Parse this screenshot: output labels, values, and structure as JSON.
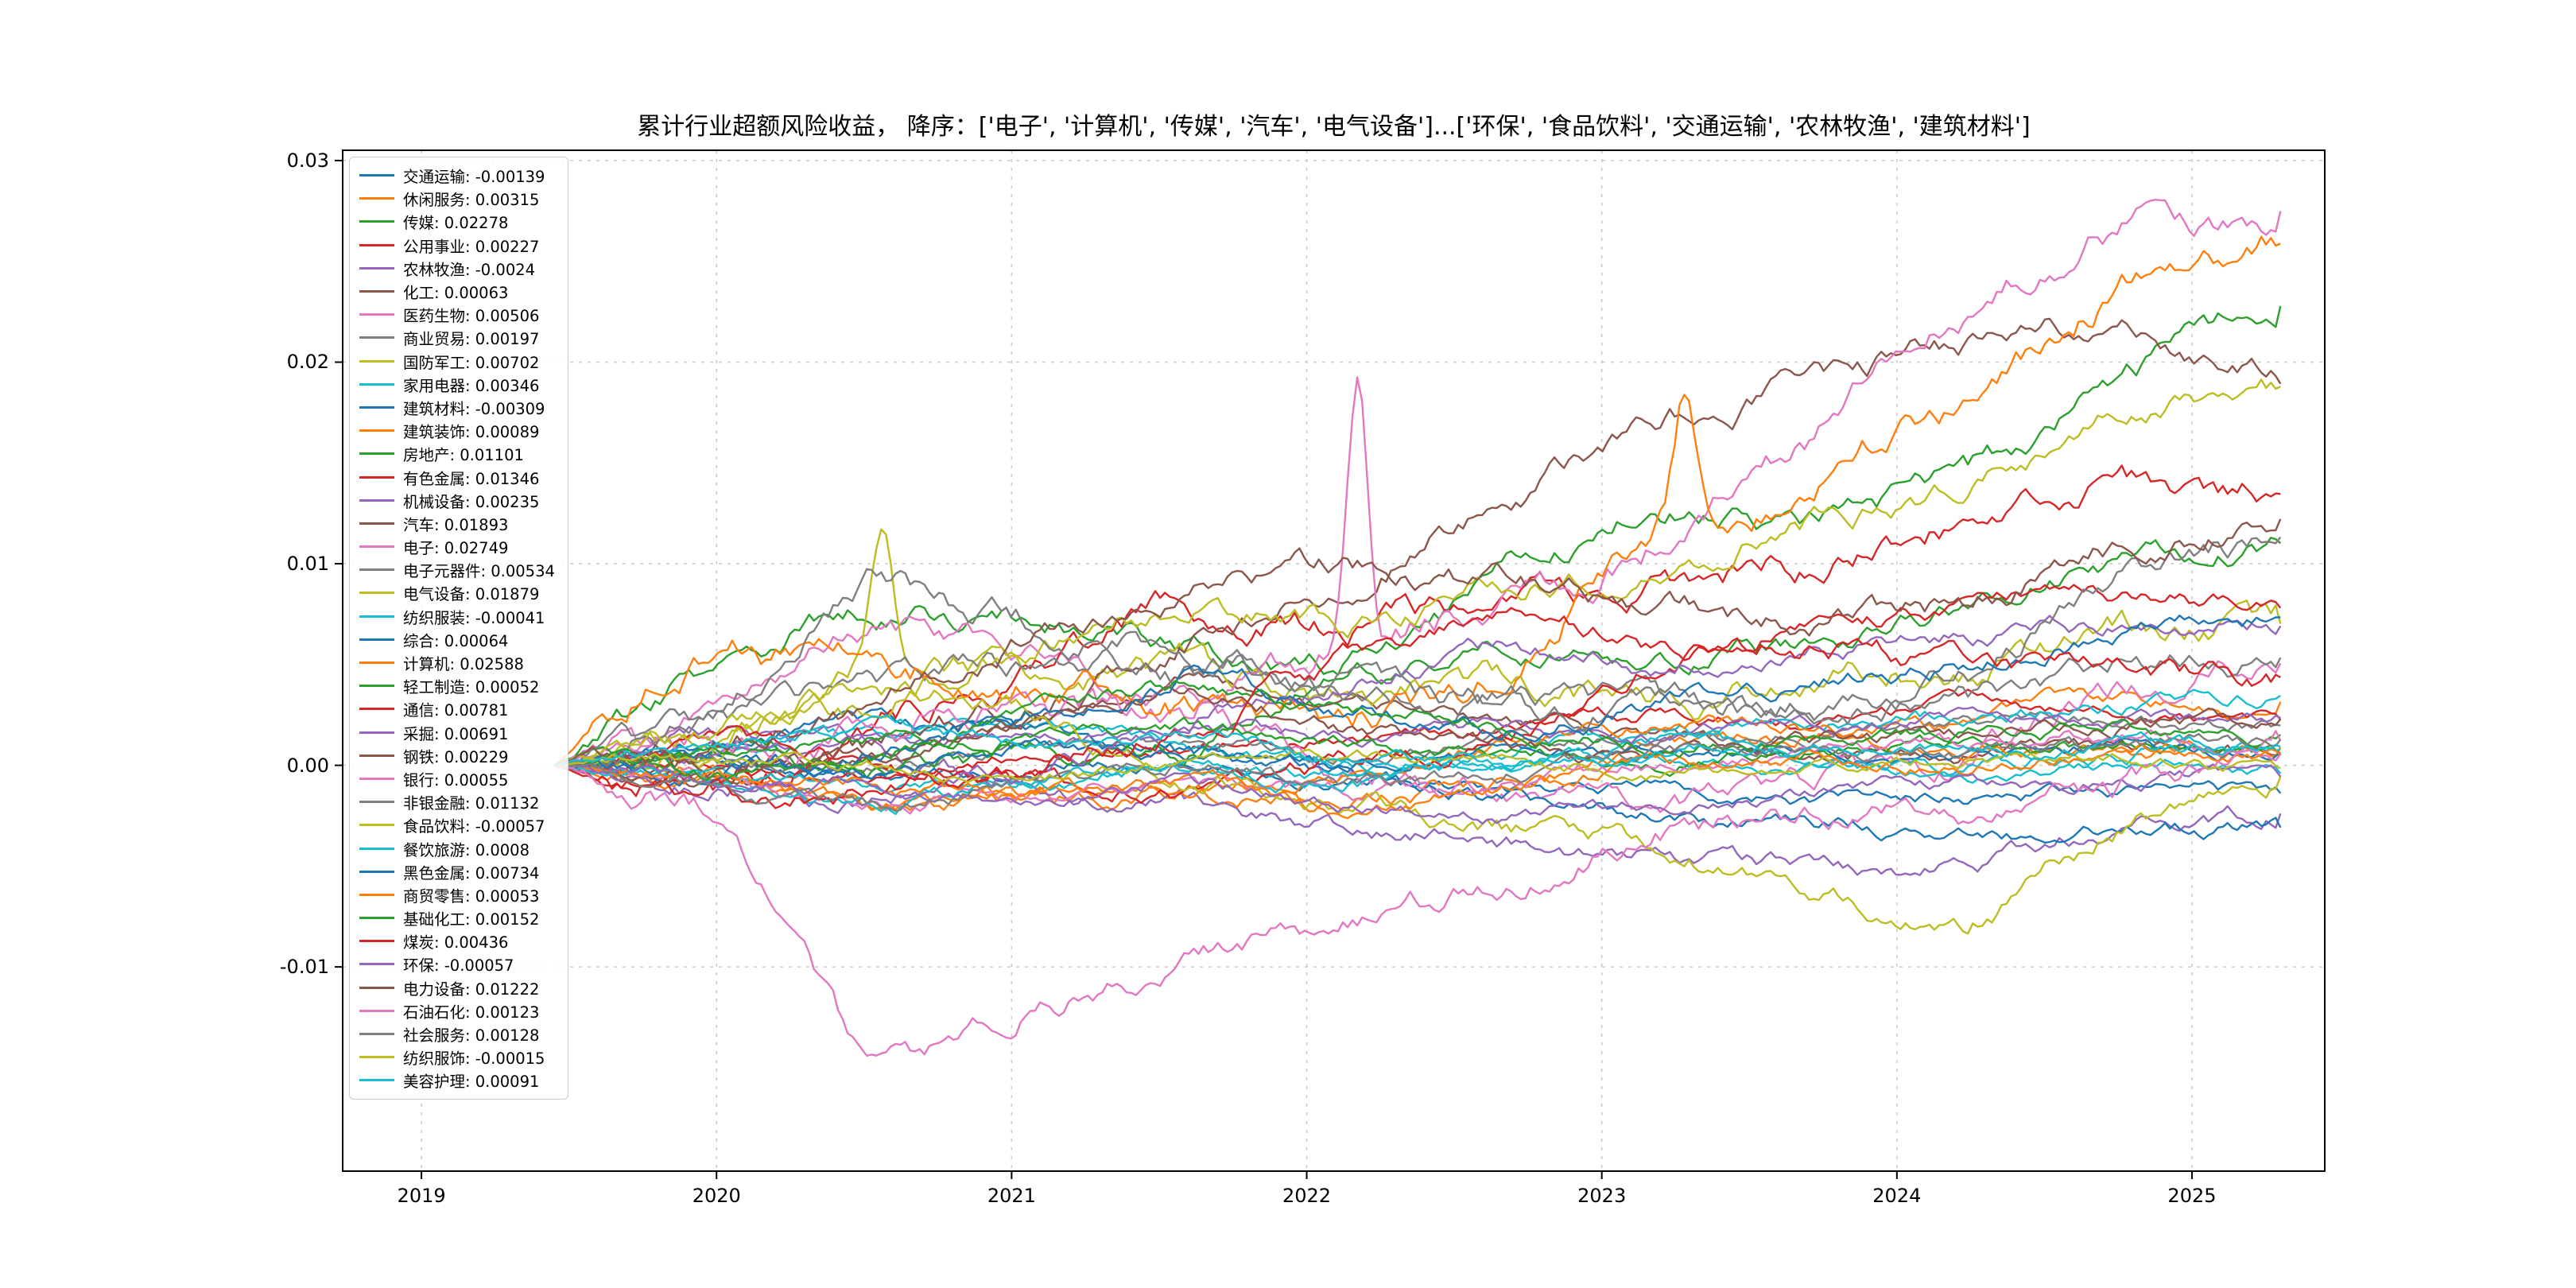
{
  "title": "累计行业超额风险收益， 降序：['电子', '计算机', '传媒', '汽车', '电气设备']...['环保', '食品饮料', '交通运输', '农林牧渔', '建筑材料']",
  "axes": {
    "y_ticks": [
      "0.03",
      "0.02",
      "0.01",
      "0.00",
      "-0.01"
    ],
    "y_tick_values": [
      0.03,
      0.02,
      0.01,
      0.0,
      -0.01
    ],
    "x_ticks": [
      "2019",
      "2020",
      "2021",
      "2022",
      "2023",
      "2024",
      "2025"
    ],
    "x_tick_values": [
      2019,
      2020,
      2021,
      2022,
      2023,
      2024,
      2025
    ],
    "xlim": [
      2018.733,
      2025.45
    ],
    "ylim": [
      -0.02013,
      0.03051
    ],
    "grid": true,
    "grid_style": "dashed"
  },
  "chart_data": {
    "type": "line",
    "title": "累计行业超额风险收益， 降序：['电子', '计算机', '传媒', '汽车', '电气设备']...['环保', '食品饮料', '交通运输', '农林牧渔', '建筑材料']",
    "xlabel": "",
    "ylabel": "",
    "legend_position": "upper-left",
    "x_start": 2019.45,
    "x_end": 2025.3,
    "anchor_unit": 0.001,
    "note": "anchors are cumulative excess return in units of 0.001, evenly spaced in time from x_start to x_end; final is the exact end value shown in the legend",
    "series": [
      {
        "name": "交通运输",
        "value_label": "-0.00139",
        "final": -0.00139,
        "color": "#1f77b4",
        "vol": 0.45,
        "anchors": [
          0,
          0.4,
          -0.8,
          -0.4,
          0.2,
          -0.8,
          -1.4,
          -1.0,
          -1.8,
          -1.6,
          -1.3,
          -1.39
        ]
      },
      {
        "name": "休闲服务",
        "value_label": "0.00315",
        "final": 0.00315,
        "color": "#ff7f0e",
        "vol": 0.6,
        "anchors": [
          0,
          -0.8,
          -2.6,
          -1.8,
          -1.2,
          -2.2,
          -1.2,
          0.8,
          1.8,
          2.4,
          3.0,
          3.15
        ]
      },
      {
        "name": "传媒",
        "value_label": "0.02278",
        "final": 0.02278,
        "color": "#2ca02c",
        "vol": 0.8,
        "anchors": [
          0,
          5,
          8,
          7,
          6,
          5,
          9,
          13,
          12,
          14,
          19,
          22.78
        ]
      },
      {
        "name": "公用事业",
        "value_label": "0.00227",
        "final": 0.00227,
        "color": "#d62728",
        "vol": 0.45,
        "anchors": [
          0,
          0,
          -0.5,
          0.5,
          1,
          1.5,
          2,
          2.6,
          2.1,
          3,
          2.5,
          2.27
        ]
      },
      {
        "name": "农林牧渔",
        "value_label": "-0.0024",
        "final": -0.0024,
        "color": "#9467bd",
        "vol": 0.6,
        "anchors": [
          0,
          2,
          1,
          -1,
          -2,
          -3,
          -4,
          -4.5,
          -5,
          -5,
          -3,
          -2.4
        ]
      },
      {
        "name": "化工",
        "value_label": "0.00063",
        "final": 0.00063,
        "color": "#8c564b",
        "vol": 0.5,
        "anchors": [
          0,
          -1,
          0,
          2,
          4,
          3,
          2.2,
          1.2,
          0.6,
          0.5,
          1,
          0.63
        ]
      },
      {
        "name": "医药生物",
        "value_label": "0.00506",
        "final": 0.00506,
        "color": "#e377c2",
        "vol": 0.8,
        "anchors": [
          0,
          3,
          7,
          6,
          3,
          0,
          -1,
          -2,
          -1,
          0,
          4,
          5.06
        ]
      },
      {
        "name": "商业贸易",
        "value_label": "0.00197",
        "final": 0.00197,
        "color": "#7f7f7f",
        "vol": 0.45,
        "anchors": [
          0,
          0.5,
          0,
          0.5,
          1,
          0.5,
          1.5,
          1,
          1.5,
          2,
          2.2,
          1.97
        ]
      },
      {
        "name": "国防军工",
        "value_label": "0.00702",
        "final": 0.00702,
        "color": "#bcbd22",
        "vol": 0.9,
        "anchors": [
          0,
          1,
          5,
          4.5,
          5,
          3,
          4,
          3,
          4,
          5,
          6.5,
          7.02
        ],
        "spikes": [
          [
            0.19,
            6
          ]
        ]
      },
      {
        "name": "家用电器",
        "value_label": "0.00346",
        "final": 0.00346,
        "color": "#17becf",
        "vol": 0.5,
        "anchors": [
          0,
          1,
          1.5,
          2,
          1,
          0,
          0.5,
          1.5,
          2,
          2.5,
          3,
          3.46
        ]
      },
      {
        "name": "建筑材料",
        "value_label": "-0.00309",
        "final": -0.00309,
        "color": "#1f77b4",
        "vol": 0.5,
        "anchors": [
          0,
          1,
          2,
          1.5,
          0.5,
          -0.5,
          -1.5,
          -2.5,
          -3,
          -3.5,
          -3.2,
          -3.09
        ]
      },
      {
        "name": "建筑装饰",
        "value_label": "0.00089",
        "final": 0.00089,
        "color": "#ff7f0e",
        "vol": 0.5,
        "anchors": [
          0,
          -1,
          -2,
          -1.5,
          -1,
          -0.5,
          1,
          2,
          1.5,
          1,
          0.8,
          0.89
        ]
      },
      {
        "name": "房地产",
        "value_label": "0.01101",
        "final": 0.01101,
        "color": "#2ca02c",
        "vol": 0.7,
        "anchors": [
          0,
          1,
          0,
          0.5,
          1,
          4,
          6,
          5,
          6,
          8,
          10,
          11.01
        ]
      },
      {
        "name": "有色金属",
        "value_label": "0.01346",
        "final": 0.01346,
        "color": "#d62728",
        "vol": 0.9,
        "anchors": [
          0,
          -1,
          1,
          5,
          8,
          7,
          8,
          9,
          10,
          12,
          14,
          13.46
        ]
      },
      {
        "name": "机械设备",
        "value_label": "0.00235",
        "final": 0.00235,
        "color": "#9467bd",
        "vol": 0.45,
        "anchors": [
          0,
          0.5,
          1,
          1.5,
          2,
          1.5,
          2,
          1.5,
          2,
          2.5,
          2.3,
          2.35
        ]
      },
      {
        "name": "汽车",
        "value_label": "0.01893",
        "final": 0.01893,
        "color": "#8c564b",
        "vol": 0.8,
        "anchors": [
          0,
          0,
          1,
          3,
          6,
          9,
          13,
          17,
          19,
          21,
          22,
          18.93
        ]
      },
      {
        "name": "电子",
        "value_label": "0.02749",
        "final": 0.02749,
        "color": "#e377c2",
        "vol": 1.0,
        "anchors": [
          0,
          1,
          2,
          3,
          2,
          6,
          8,
          11,
          16,
          23,
          27,
          27.49
        ],
        "spikes": [
          [
            0.465,
            14
          ]
        ]
      },
      {
        "name": "电子元器件",
        "value_label": "0.00534",
        "final": 0.00534,
        "color": "#7f7f7f",
        "vol": 0.8,
        "anchors": [
          0,
          2,
          4,
          5,
          6,
          4,
          3,
          2.5,
          2,
          3,
          5,
          5.34
        ]
      },
      {
        "name": "电气设备",
        "value_label": "0.01879",
        "final": 0.01879,
        "color": "#bcbd22",
        "vol": 0.8,
        "anchors": [
          0,
          1,
          3,
          6,
          8,
          7,
          9,
          10,
          12,
          14,
          17,
          18.79
        ]
      },
      {
        "name": "纺织服装",
        "value_label": "-0.00041",
        "final": -0.00041,
        "color": "#17becf",
        "vol": 0.4,
        "anchors": [
          0,
          -0.5,
          -1,
          -0.5,
          0,
          -0.5,
          0,
          0.5,
          0,
          -0.5,
          0.2,
          -0.41
        ]
      },
      {
        "name": "综合",
        "value_label": "0.00064",
        "final": 0.00064,
        "color": "#1f77b4",
        "vol": 0.4,
        "anchors": [
          0,
          0.5,
          -0.5,
          1,
          0.5,
          0,
          1,
          0.5,
          1,
          0.5,
          1,
          0.64
        ]
      },
      {
        "name": "计算机",
        "value_label": "0.02588",
        "final": 0.02588,
        "color": "#ff7f0e",
        "vol": 1.0,
        "anchors": [
          0,
          6,
          5,
          4,
          3,
          2,
          4,
          12,
          14,
          18,
          24,
          25.88
        ],
        "spikes": [
          [
            0.655,
            6
          ]
        ]
      },
      {
        "name": "轻工制造",
        "value_label": "0.00052",
        "final": 0.00052,
        "color": "#2ca02c",
        "vol": 0.45,
        "anchors": [
          0,
          1,
          1.5,
          1,
          2,
          1,
          0.5,
          0,
          0.5,
          1,
          0.8,
          0.52
        ]
      },
      {
        "name": "通信",
        "value_label": "0.00781",
        "final": 0.00781,
        "color": "#d62728",
        "vol": 0.6,
        "anchors": [
          0,
          1,
          0,
          -1,
          -1,
          0,
          1,
          5,
          7,
          8,
          8.5,
          7.81
        ]
      },
      {
        "name": "采掘",
        "value_label": "0.00691",
        "final": 0.00691,
        "color": "#9467bd",
        "vol": 0.6,
        "anchors": [
          0,
          -1,
          -2,
          0,
          2,
          4,
          6,
          5,
          6,
          6.5,
          7,
          6.91
        ]
      },
      {
        "name": "钢铁",
        "value_label": "0.00229",
        "final": 0.00229,
        "color": "#8c564b",
        "vol": 0.5,
        "anchors": [
          0,
          -0.5,
          0,
          2,
          4,
          2,
          1,
          0.5,
          1,
          1.5,
          2,
          2.29
        ]
      },
      {
        "name": "银行",
        "value_label": "0.00055",
        "final": 0.00055,
        "color": "#e377c2",
        "vol": 0.5,
        "anchors": [
          0,
          -1,
          -2,
          -1.5,
          -1,
          -1.5,
          -1,
          0,
          0.5,
          1,
          1.5,
          0.55
        ]
      },
      {
        "name": "非银金融",
        "value_label": "0.01132",
        "final": 0.01132,
        "color": "#7f7f7f",
        "vol": 0.9,
        "anchors": [
          0,
          2,
          9,
          7,
          5,
          4,
          3,
          2.5,
          3,
          4,
          10,
          11.32
        ]
      },
      {
        "name": "食品饮料",
        "value_label": "-0.00057",
        "final": -0.00057,
        "color": "#bcbd22",
        "vol": 0.7,
        "anchors": [
          0,
          2,
          4,
          3,
          0,
          -2,
          -3,
          -4,
          -6,
          -8,
          -3,
          -0.57
        ]
      },
      {
        "name": "餐饮旅游",
        "value_label": "0.0008",
        "final": 0.0008,
        "color": "#17becf",
        "vol": 0.5,
        "anchors": [
          0,
          -1,
          -2,
          -1,
          0,
          -1,
          0,
          1,
          0.5,
          0,
          0.5,
          0.8
        ]
      },
      {
        "name": "黑色金属",
        "value_label": "0.00734",
        "final": 0.00734,
        "color": "#1f77b4",
        "vol": 0.6,
        "anchors": [
          0,
          -0.5,
          0.5,
          2.5,
          4.5,
          3,
          2,
          3,
          4,
          5,
          6.5,
          7.34
        ]
      },
      {
        "name": "商贸零售",
        "value_label": "0.00053",
        "final": 0.00053,
        "color": "#ff7f0e",
        "vol": 0.45,
        "anchors": [
          0,
          -0.5,
          -1,
          -1.5,
          -1,
          -2,
          -1,
          0,
          0.5,
          0,
          0.8,
          0.53
        ]
      },
      {
        "name": "基础化工",
        "value_label": "0.00152",
        "final": 0.00152,
        "color": "#2ca02c",
        "vol": 0.5,
        "anchors": [
          0,
          -0.5,
          0.5,
          2.5,
          4,
          3,
          2,
          1,
          1,
          1.5,
          2,
          1.52
        ]
      },
      {
        "name": "煤炭",
        "value_label": "0.00436",
        "final": 0.00436,
        "color": "#d62728",
        "vol": 0.7,
        "anchors": [
          0,
          -1,
          -1.5,
          0,
          2,
          5,
          7,
          6,
          6,
          5,
          4.5,
          4.36
        ]
      },
      {
        "name": "环保",
        "value_label": "-0.00057",
        "final": -0.00057,
        "color": "#9467bd",
        "vol": 0.45,
        "anchors": [
          0,
          -0.5,
          -1,
          -1.5,
          -1,
          -2,
          -2.5,
          -2,
          -1.5,
          -1,
          -0.8,
          -0.57
        ]
      },
      {
        "name": "电力设备",
        "value_label": "0.01222",
        "final": 0.01222,
        "color": "#8c564b",
        "vol": 0.8,
        "anchors": [
          0,
          1,
          3,
          6,
          9,
          10,
          9,
          8,
          7,
          8,
          11,
          12.22
        ]
      },
      {
        "name": "石油石化",
        "value_label": "0.00123",
        "final": 0.00123,
        "color": "#e377c2",
        "vol": 0.8,
        "anchors": [
          0,
          -2,
          -16,
          -12,
          -10,
          -8,
          -6,
          -3,
          -2.5,
          -2,
          -1,
          1.23
        ]
      },
      {
        "name": "社会服务",
        "value_label": "0.00128",
        "final": 0.00128,
        "color": "#7f7f7f",
        "vol": 0.5,
        "anchors": [
          0,
          -1,
          -2,
          -1,
          0,
          -1,
          -0.5,
          0.5,
          1,
          0.5,
          1,
          1.28
        ]
      },
      {
        "name": "纺织服饰",
        "value_label": "-0.00015",
        "final": -0.00015,
        "color": "#bcbd22",
        "vol": 0.4,
        "anchors": [
          0,
          0.5,
          0,
          -0.5,
          0,
          0.5,
          0,
          -0.5,
          0,
          0.5,
          0.3,
          -0.15
        ]
      },
      {
        "name": "美容护理",
        "value_label": "0.00091",
        "final": 0.00091,
        "color": "#17becf",
        "vol": 0.45,
        "anchors": [
          0,
          1,
          2,
          1,
          1.5,
          0.5,
          0,
          0.5,
          1,
          0.5,
          1,
          0.91
        ]
      }
    ]
  }
}
